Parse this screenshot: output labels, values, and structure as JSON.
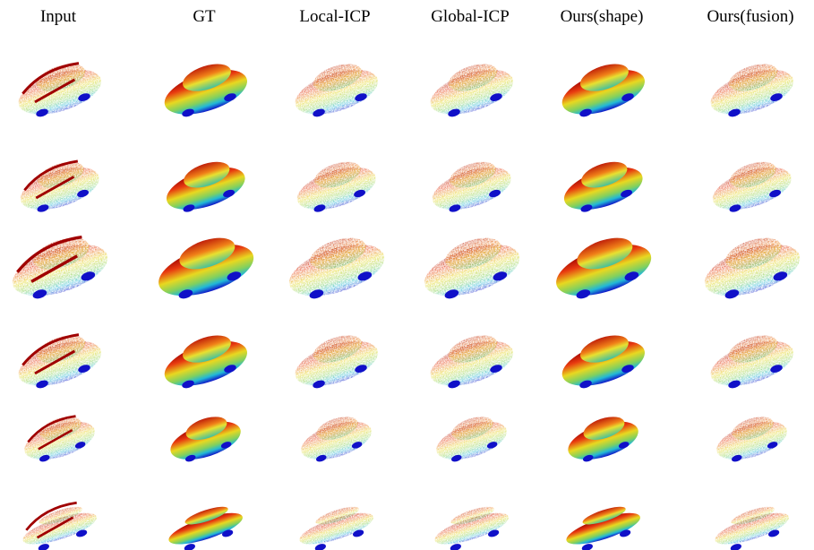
{
  "columns": [
    "Input",
    "GT",
    "Local-ICP",
    "Global-ICP",
    "Ours(shape)",
    "Ours(fusion)"
  ]
}
